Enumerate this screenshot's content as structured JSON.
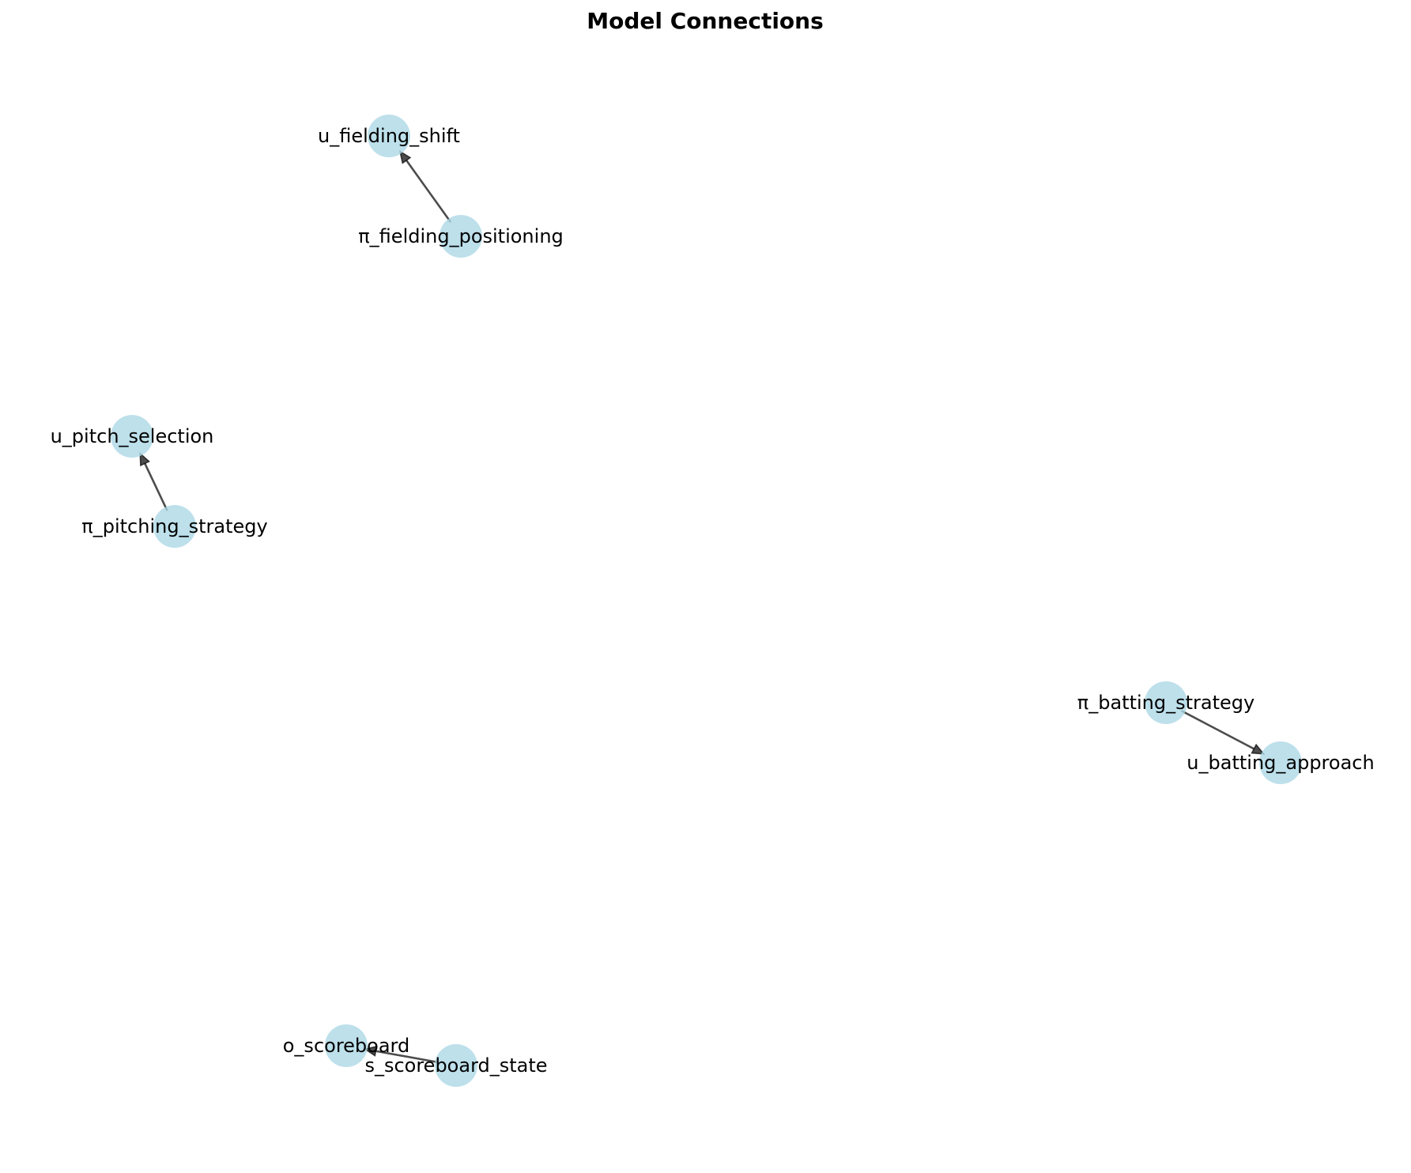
{
  "title": "Model Connections",
  "colors": {
    "node_fill": "#add8e6",
    "edge": "#000000",
    "text": "#000000",
    "background": "#ffffff"
  },
  "nodes": [
    {
      "id": "u_fielding_shift",
      "label": "u_fielding_shift"
    },
    {
      "id": "pi_fielding_positioning",
      "label": "π_fielding_positioning"
    },
    {
      "id": "u_pitch_selection",
      "label": "u_pitch_selection"
    },
    {
      "id": "pi_pitching_strategy",
      "label": "π_pitching_strategy"
    },
    {
      "id": "pi_batting_strategy",
      "label": "π_batting_strategy"
    },
    {
      "id": "u_batting_approach",
      "label": "u_batting_approach"
    },
    {
      "id": "o_scoreboard",
      "label": "o_scoreboard"
    },
    {
      "id": "s_scoreboard_state",
      "label": "s_scoreboard_state"
    }
  ],
  "edges": [
    {
      "from": "pi_fielding_positioning",
      "to": "u_fielding_shift"
    },
    {
      "from": "pi_pitching_strategy",
      "to": "u_pitch_selection"
    },
    {
      "from": "pi_batting_strategy",
      "to": "u_batting_approach"
    },
    {
      "from": "s_scoreboard_state",
      "to": "o_scoreboard"
    }
  ]
}
